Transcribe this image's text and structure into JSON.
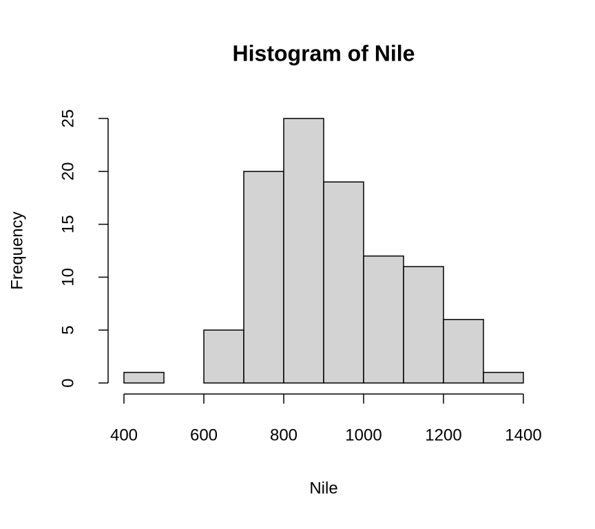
{
  "chart_data": {
    "type": "histogram",
    "title": "Histogram of Nile",
    "x_label": "Nile",
    "y_label": "Frequency",
    "bins": [
      400,
      500,
      600,
      700,
      800,
      900,
      1000,
      1100,
      1200,
      1300,
      1400
    ],
    "values": [
      1,
      0,
      5,
      20,
      25,
      19,
      12,
      11,
      6,
      1
    ],
    "color": "#d3d3d3",
    "xlim": [
      400,
      1400
    ],
    "xticks": [
      400,
      600,
      800,
      1000,
      1200,
      1400
    ],
    "ylim": [
      0,
      25
    ],
    "yticks": [
      0,
      5,
      10,
      15,
      20,
      25
    ],
    "grid": false
  }
}
